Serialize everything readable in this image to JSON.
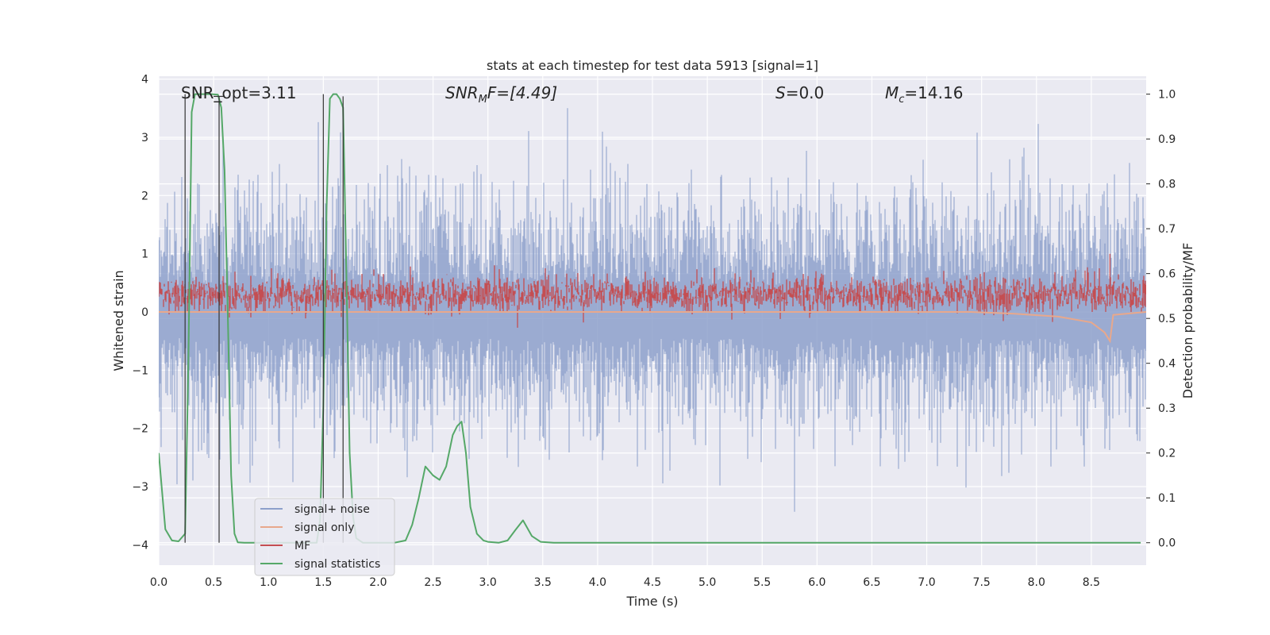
{
  "chart_data": {
    "type": "line",
    "title": "stats at each timestep for test data 5913 [signal=1]",
    "xlabel": "Time (s)",
    "ylabel": "Whitened strain",
    "y2label": "Detection probability/MF",
    "xlim": [
      0,
      9.0
    ],
    "ylim": [
      -4.35,
      4.05
    ],
    "y2lim": [
      -0.05,
      1.04
    ],
    "x_ticks": [
      "0.0",
      "0.5",
      "1.0",
      "1.5",
      "2.0",
      "2.5",
      "3.0",
      "3.5",
      "4.0",
      "4.5",
      "5.0",
      "5.5",
      "6.0",
      "6.5",
      "7.0",
      "7.5",
      "8.0",
      "8.5"
    ],
    "y_ticks": [
      "4",
      "3",
      "2",
      "1",
      "0",
      "−1",
      "−2",
      "−3",
      "−4"
    ],
    "y2_ticks": [
      "1.0",
      "0.9",
      "0.8",
      "0.7",
      "0.6",
      "0.5",
      "0.4",
      "0.3",
      "0.2",
      "0.1",
      "0.0"
    ],
    "grid": true,
    "legend_position": "lower-left",
    "background_color": "#eaeaf2",
    "grid_color": "#ffffff",
    "annotations": {
      "snr_opt": {
        "text": "SNR_opt=3.11"
      },
      "snr_mf": {
        "pre": "SNR",
        "sub": "M",
        "post": "F=[4.49]"
      },
      "s": {
        "pre": "S",
        "post": "=0.0"
      },
      "mc": {
        "pre": "M",
        "sub": "c",
        "post": "=14.16"
      }
    },
    "series": [
      {
        "name": "signal+ noise",
        "color": "#8da0cb",
        "axis": "left",
        "description": "whitened noisy strain, dense band roughly between -2.5 and 2.5"
      },
      {
        "name": "signal only",
        "color": "#e8a88c",
        "axis": "left",
        "points": [
          [
            0.0,
            0.0
          ],
          [
            7.4,
            0.0
          ],
          [
            7.8,
            -0.03
          ],
          [
            8.2,
            -0.08
          ],
          [
            8.5,
            -0.18
          ],
          [
            8.62,
            -0.35
          ],
          [
            8.67,
            -0.5
          ],
          [
            8.7,
            -0.05
          ],
          [
            9.0,
            0.0
          ]
        ]
      },
      {
        "name": "MF",
        "color": "#c44e52",
        "axis": "left",
        "description": "matched filter output oscillating roughly between 0 and 0.6, spike near 8.65 s up to ~1.0"
      },
      {
        "name": "signal statistics",
        "color": "#55a868",
        "axis": "right",
        "x": [
          0.0,
          0.06,
          0.12,
          0.18,
          0.24,
          0.27,
          0.3,
          0.33,
          0.36,
          0.42,
          0.48,
          0.54,
          0.57,
          0.6,
          0.63,
          0.66,
          0.69,
          0.72,
          0.78,
          0.9,
          1.2,
          1.44,
          1.47,
          1.5,
          1.53,
          1.56,
          1.59,
          1.62,
          1.65,
          1.68,
          1.71,
          1.74,
          1.77,
          1.8,
          1.86,
          2.0,
          2.15,
          2.25,
          2.31,
          2.37,
          2.43,
          2.5,
          2.56,
          2.62,
          2.68,
          2.72,
          2.76,
          2.8,
          2.84,
          2.9,
          2.96,
          3.0,
          3.1,
          3.18,
          3.25,
          3.32,
          3.4,
          3.48,
          3.6,
          4.0,
          5.0,
          6.0,
          7.0,
          8.0,
          8.95
        ],
        "y": [
          0.2,
          0.03,
          0.005,
          0.003,
          0.02,
          0.4,
          0.96,
          1.0,
          1.0,
          1.0,
          1.0,
          0.999,
          0.97,
          0.83,
          0.5,
          0.15,
          0.02,
          0.001,
          0.0,
          0.0,
          0.0,
          0.0,
          0.05,
          0.3,
          0.75,
          0.99,
          1.0,
          1.0,
          0.99,
          0.97,
          0.6,
          0.2,
          0.06,
          0.01,
          0.0,
          0.0,
          0.0,
          0.005,
          0.04,
          0.1,
          0.17,
          0.15,
          0.14,
          0.17,
          0.24,
          0.26,
          0.27,
          0.2,
          0.08,
          0.02,
          0.005,
          0.002,
          0.0,
          0.005,
          0.028,
          0.05,
          0.015,
          0.002,
          0.0,
          0.0,
          0.0,
          0.0,
          0.0,
          0.0,
          0.0
        ]
      }
    ],
    "vertical_lines": [
      {
        "x": 0.24,
        "y_top": 1.0,
        "y_bottom": 0.0
      },
      {
        "x": 0.55,
        "y_top": 0.995,
        "y_bottom": 0.0
      },
      {
        "x": 1.5,
        "y_top": 1.0,
        "y_bottom": 0.0
      },
      {
        "x": 1.68,
        "y_top": 0.995,
        "y_bottom": 0.0
      }
    ]
  }
}
